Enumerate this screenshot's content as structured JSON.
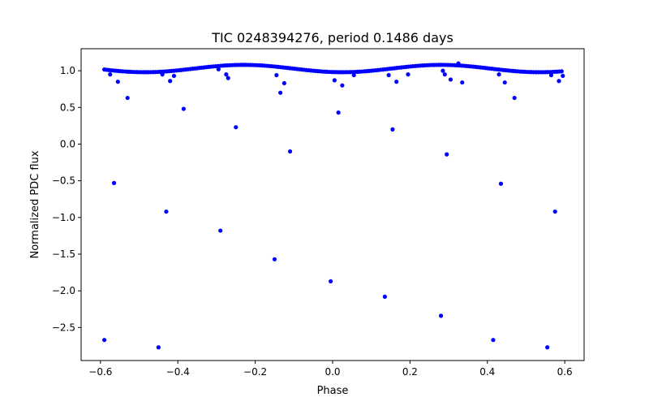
{
  "chart_data": {
    "type": "scatter",
    "title": "TIC 0248394276, period 0.1486 days",
    "xlabel": "Phase",
    "ylabel": "Normalized PDC flux",
    "xlim": [
      -0.65,
      0.65
    ],
    "ylim": [
      -2.95,
      1.3
    ],
    "grid": false,
    "marker_color": "#0000ff",
    "x_ticks": [
      {
        "value": -0.6,
        "label": "−0.6"
      },
      {
        "value": -0.4,
        "label": "−0.4"
      },
      {
        "value": -0.2,
        "label": "−0.2"
      },
      {
        "value": 0.0,
        "label": "0.0"
      },
      {
        "value": 0.2,
        "label": "0.2"
      },
      {
        "value": 0.4,
        "label": "0.4"
      },
      {
        "value": 0.6,
        "label": "0.6"
      }
    ],
    "y_ticks": [
      {
        "value": 1.0,
        "label": "1.0"
      },
      {
        "value": 0.5,
        "label": "0.5"
      },
      {
        "value": 0.0,
        "label": "0.0"
      },
      {
        "value": -0.5,
        "label": "−0.5"
      },
      {
        "value": -1.0,
        "label": "−1.0"
      },
      {
        "value": -1.5,
        "label": "−1.5"
      },
      {
        "value": -2.0,
        "label": "−2.0"
      },
      {
        "value": -2.5,
        "label": "−2.5"
      }
    ],
    "series": [
      {
        "name": "out-of-eclipse baseline",
        "band": {
          "x_start": -0.59,
          "x_end": 0.595,
          "step": 0.006,
          "mean": 1.03,
          "amplitude": 0.05,
          "period": 0.51,
          "peak_phase": -0.23
        }
      },
      {
        "name": "eclipse and outlier points",
        "points": [
          [
            -0.59,
            -2.67
          ],
          [
            -0.565,
            -0.53
          ],
          [
            -0.555,
            0.85
          ],
          [
            -0.53,
            0.63
          ],
          [
            -0.575,
            0.95
          ],
          [
            -0.45,
            -2.77
          ],
          [
            -0.44,
            0.95
          ],
          [
            -0.43,
            -0.92
          ],
          [
            -0.42,
            0.86
          ],
          [
            -0.41,
            0.93
          ],
          [
            -0.385,
            0.48
          ],
          [
            -0.29,
            -1.18
          ],
          [
            -0.295,
            1.02
          ],
          [
            -0.275,
            0.95
          ],
          [
            -0.27,
            0.9
          ],
          [
            -0.25,
            0.23
          ],
          [
            -0.15,
            -1.57
          ],
          [
            -0.145,
            0.94
          ],
          [
            -0.135,
            0.7
          ],
          [
            -0.125,
            0.83
          ],
          [
            -0.11,
            -0.1
          ],
          [
            -0.005,
            -1.87
          ],
          [
            0.005,
            0.87
          ],
          [
            0.015,
            0.43
          ],
          [
            0.025,
            0.8
          ],
          [
            0.055,
            0.94
          ],
          [
            0.135,
            -2.08
          ],
          [
            0.145,
            0.94
          ],
          [
            0.155,
            0.2
          ],
          [
            0.165,
            0.85
          ],
          [
            0.195,
            0.95
          ],
          [
            0.28,
            -2.34
          ],
          [
            0.285,
            1.0
          ],
          [
            0.29,
            0.95
          ],
          [
            0.295,
            -0.14
          ],
          [
            0.305,
            0.88
          ],
          [
            0.325,
            1.1
          ],
          [
            0.335,
            0.84
          ],
          [
            0.415,
            -2.67
          ],
          [
            0.43,
            0.95
          ],
          [
            0.435,
            -0.54
          ],
          [
            0.445,
            0.84
          ],
          [
            0.47,
            0.63
          ],
          [
            0.555,
            -2.77
          ],
          [
            0.565,
            0.94
          ],
          [
            0.575,
            -0.92
          ],
          [
            0.585,
            0.86
          ],
          [
            0.595,
            0.93
          ]
        ]
      }
    ]
  }
}
